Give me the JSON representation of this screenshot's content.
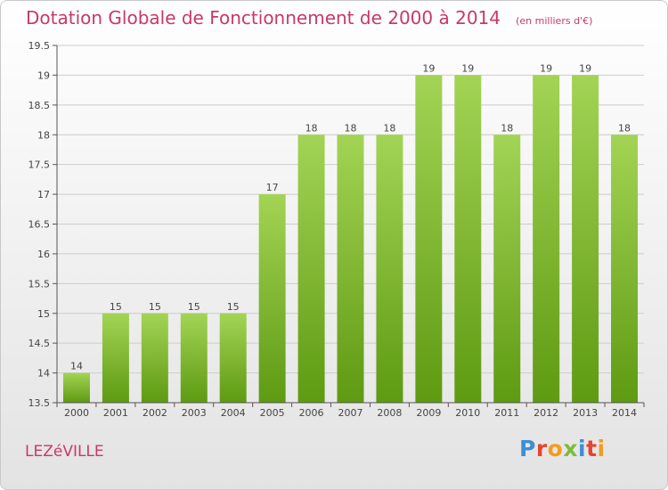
{
  "title": "Dotation Globale de Fonctionnement de 2000 à 2014",
  "subtitle": "(en milliers d'€)",
  "commune": "LEZéVILLE",
  "logo": {
    "text": "Proxiti",
    "colors": [
      "#3c8fd6",
      "#e5462d",
      "#f39c1f",
      "#7dbd36",
      "#3c8fd6",
      "#e5462d",
      "#f39c1f"
    ]
  },
  "colors": {
    "title": "#c8386b",
    "bar_top": "#a3d455",
    "bar_bottom": "#5e9a12",
    "grid": "#cccccc"
  },
  "chart_data": {
    "type": "bar",
    "categories": [
      "2000",
      "2001",
      "2002",
      "2003",
      "2004",
      "2005",
      "2006",
      "2007",
      "2008",
      "2009",
      "2010",
      "2011",
      "2012",
      "2013",
      "2014"
    ],
    "values": [
      14,
      15,
      15,
      15,
      15,
      17,
      18,
      18,
      18,
      19,
      19,
      18,
      19,
      19,
      18
    ],
    "ylim": [
      13.5,
      19.5
    ],
    "yticks": [
      "13.5",
      "14",
      "14.5",
      "15",
      "15.5",
      "16",
      "16.5",
      "17",
      "17.5",
      "18",
      "18.5",
      "19",
      "19.5"
    ],
    "grid": true,
    "data_labels": true
  }
}
